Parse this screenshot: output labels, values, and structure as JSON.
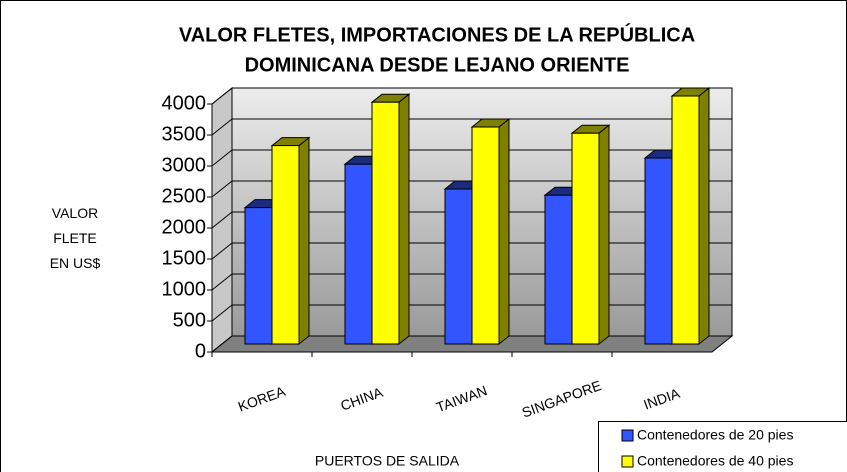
{
  "chart_data": {
    "type": "bar3d",
    "title": [
      "VALOR FLETES, IMPORTACIONES DE LA REPÚBLICA",
      "DOMINICANA DESDE LEJANO ORIENTE"
    ],
    "y_label": "VALOR FLETE EN US$",
    "x_label": "PUERTOS DE SALIDA",
    "categories": [
      "KOREA",
      "CHINA",
      "TAIWAN",
      "SINGAPORE",
      "INDIA"
    ],
    "series": [
      {
        "name": "Contenedores de 20 pies",
        "color": "#3355ff",
        "side_color": "#1a2b80",
        "values": [
          2200,
          2900,
          2500,
          2400,
          3000
        ]
      },
      {
        "name": "Contenedores de 40 pies",
        "color": "#ffff00",
        "side_color": "#808000",
        "values": [
          3200,
          3900,
          3500,
          3400,
          4000
        ]
      }
    ],
    "ylim": [
      0,
      4000
    ],
    "yticks": [
      0,
      500,
      1000,
      1500,
      2000,
      2500,
      3000,
      3500,
      4000
    ],
    "grid": true,
    "legend": "bottom-right"
  }
}
